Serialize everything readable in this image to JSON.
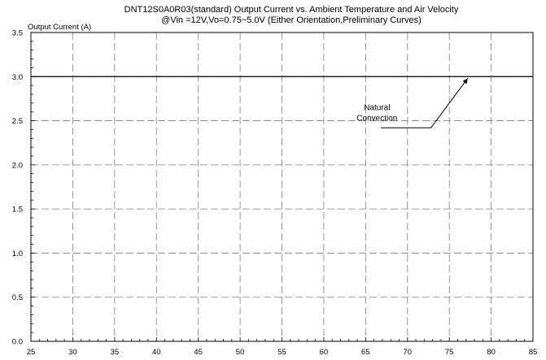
{
  "chart_data": {
    "type": "line",
    "title": "DNT12S0A0R03(standard)  Output Current vs. Ambient Temperature and Air Velocity",
    "subtitle": "@Vin =12V,Vo=0.75~5.0V  (Either Orientation,Preliminary Curves)",
    "xlabel": "",
    "ylabel": "Output Current (A)",
    "xlim": [
      25,
      85
    ],
    "ylim": [
      0,
      3.5
    ],
    "x_ticks": [
      "25",
      "30",
      "35",
      "40",
      "45",
      "50",
      "55",
      "60",
      "65",
      "70",
      "75",
      "80",
      "85"
    ],
    "y_ticks": [
      "0.0",
      "0.5",
      "1.0",
      "1.5",
      "2.0",
      "2.5",
      "3.0",
      "3.5"
    ],
    "grid": true,
    "series": [
      {
        "name": "Natural Convection",
        "x": [
          25,
          85
        ],
        "y": [
          3.0,
          3.0
        ]
      }
    ],
    "annotations": [
      {
        "text_lines": [
          "Natural",
          "Convection"
        ],
        "x": 72,
        "y": 2.62
      }
    ],
    "colors": {
      "line": "#000000",
      "grid": "#7f7f7f",
      "background": "#ffffff"
    }
  }
}
